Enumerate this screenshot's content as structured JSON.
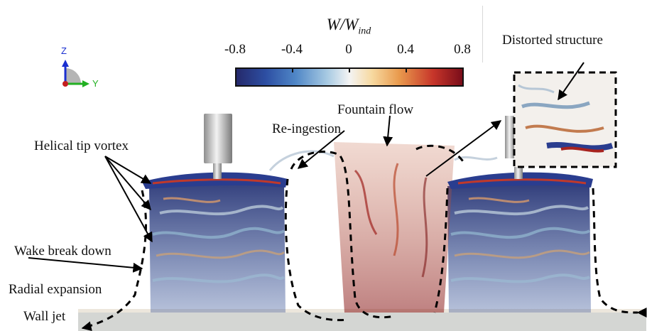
{
  "colorbar": {
    "title_main": "W/W",
    "title_sub": "ind",
    "ticks": [
      "-0.8",
      "-0.4",
      "0",
      "0.4",
      "0.8"
    ],
    "range": [
      -0.8,
      0.8
    ],
    "colors": [
      "#25296b",
      "#4f86c6",
      "#f4f4f4",
      "#e99a4d",
      "#7a0d1a"
    ]
  },
  "axes": {
    "z": "Z",
    "y": "Y"
  },
  "annotations": {
    "distorted": "Distorted structure",
    "fountain": "Fountain flow",
    "reingestion": "Re-ingestion",
    "helical": "Helical tip vortex",
    "wake": "Wake break down",
    "radial": "Radial expansion",
    "walljet": "Wall jet"
  }
}
